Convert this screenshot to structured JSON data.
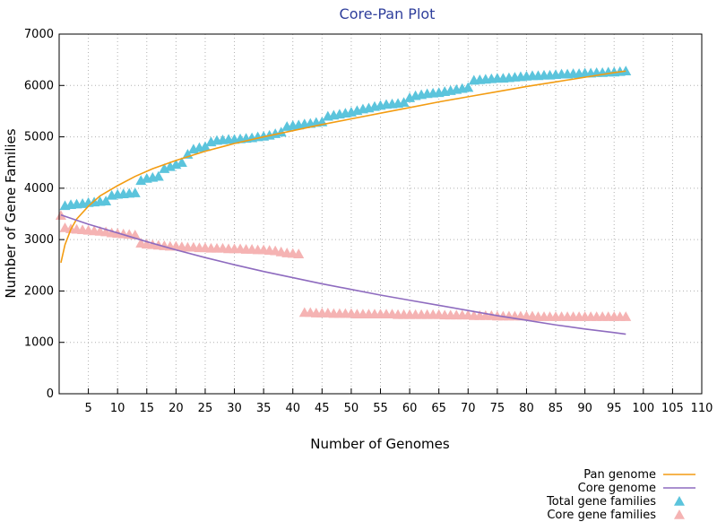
{
  "chart_data": {
    "type": "line",
    "title": "Core-Pan Plot",
    "xlabel": "Number of Genomes",
    "ylabel": "Number of Gene Families",
    "xlim": [
      0,
      110
    ],
    "ylim": [
      0,
      7000
    ],
    "xticks": [
      5,
      10,
      15,
      20,
      25,
      30,
      35,
      40,
      45,
      50,
      55,
      60,
      65,
      70,
      75,
      80,
      85,
      90,
      95,
      100,
      105,
      110
    ],
    "yticks": [
      0,
      1000,
      2000,
      3000,
      4000,
      5000,
      6000,
      7000
    ],
    "legend_position": "bottom-right",
    "series": [
      {
        "name": "Pan genome",
        "kind": "fit-line",
        "color": "#f39c12",
        "x": [
          0.3,
          1,
          2,
          3,
          5,
          7,
          10,
          13,
          16,
          20,
          25,
          30,
          35,
          40,
          45,
          50,
          55,
          60,
          65,
          70,
          75,
          80,
          85,
          90,
          95,
          97
        ],
        "values": [
          2550,
          2900,
          3200,
          3400,
          3650,
          3850,
          4050,
          4230,
          4380,
          4540,
          4720,
          4870,
          5000,
          5120,
          5240,
          5350,
          5460,
          5570,
          5680,
          5780,
          5880,
          5980,
          6070,
          6160,
          6250,
          6280
        ]
      },
      {
        "name": "Core genome",
        "kind": "fit-line",
        "color": "#8e6bbf",
        "x": [
          0.3,
          5,
          10,
          15,
          20,
          25,
          30,
          35,
          40,
          45,
          50,
          55,
          60,
          65,
          70,
          75,
          80,
          85,
          90,
          95,
          97
        ],
        "values": [
          3480,
          3300,
          3130,
          2960,
          2800,
          2650,
          2510,
          2380,
          2260,
          2140,
          2030,
          1920,
          1820,
          1720,
          1620,
          1520,
          1430,
          1340,
          1260,
          1190,
          1160
        ]
      },
      {
        "name": "Total gene families",
        "kind": "markers",
        "color": "#5bc4dc",
        "x": [
          1,
          2,
          3,
          4,
          5,
          6,
          7,
          8,
          9,
          10,
          11,
          12,
          13,
          14,
          15,
          16,
          17,
          18,
          19,
          20,
          21,
          22,
          23,
          24,
          25,
          26,
          27,
          28,
          29,
          30,
          31,
          32,
          33,
          34,
          35,
          36,
          37,
          38,
          39,
          40,
          41,
          42,
          43,
          44,
          45,
          46,
          47,
          48,
          49,
          50,
          51,
          52,
          53,
          54,
          55,
          56,
          57,
          58,
          59,
          60,
          61,
          62,
          63,
          64,
          65,
          66,
          67,
          68,
          69,
          70,
          71,
          72,
          73,
          74,
          75,
          76,
          77,
          78,
          79,
          80,
          81,
          82,
          83,
          84,
          85,
          86,
          87,
          88,
          89,
          90,
          91,
          92,
          93,
          94,
          95,
          96,
          97
        ],
        "values": [
          3660,
          3680,
          3690,
          3700,
          3720,
          3730,
          3740,
          3750,
          3860,
          3880,
          3890,
          3900,
          3910,
          4150,
          4190,
          4210,
          4230,
          4380,
          4420,
          4460,
          4500,
          4660,
          4760,
          4790,
          4810,
          4900,
          4930,
          4940,
          4950,
          4950,
          4960,
          4970,
          4980,
          5000,
          5010,
          5030,
          5060,
          5090,
          5200,
          5220,
          5230,
          5250,
          5260,
          5280,
          5290,
          5400,
          5420,
          5440,
          5460,
          5480,
          5510,
          5540,
          5560,
          5590,
          5610,
          5630,
          5640,
          5650,
          5670,
          5760,
          5800,
          5820,
          5840,
          5850,
          5860,
          5880,
          5900,
          5920,
          5940,
          5960,
          6100,
          6110,
          6120,
          6130,
          6140,
          6140,
          6150,
          6160,
          6170,
          6180,
          6190,
          6190,
          6200,
          6200,
          6210,
          6220,
          6220,
          6230,
          6230,
          6240,
          6240,
          6250,
          6250,
          6260,
          6260,
          6270,
          6280
        ]
      },
      {
        "name": "Core gene families",
        "kind": "markers",
        "color": "#f5b3b3",
        "x": [
          0.3,
          1,
          2,
          3,
          4,
          5,
          6,
          7,
          8,
          9,
          10,
          11,
          12,
          13,
          14,
          15,
          16,
          17,
          18,
          19,
          20,
          21,
          22,
          23,
          24,
          25,
          26,
          27,
          28,
          29,
          30,
          31,
          32,
          33,
          34,
          35,
          36,
          37,
          38,
          39,
          40,
          41,
          42,
          43,
          44,
          45,
          46,
          47,
          48,
          49,
          50,
          51,
          52,
          53,
          54,
          55,
          56,
          57,
          58,
          59,
          60,
          61,
          62,
          63,
          64,
          65,
          66,
          67,
          68,
          69,
          70,
          71,
          72,
          73,
          74,
          75,
          76,
          77,
          78,
          79,
          80,
          81,
          82,
          83,
          84,
          85,
          86,
          87,
          88,
          89,
          90,
          91,
          92,
          93,
          94,
          95,
          96,
          97
        ],
        "values": [
          3470,
          3230,
          3210,
          3200,
          3190,
          3180,
          3170,
          3160,
          3150,
          3130,
          3120,
          3110,
          3100,
          3090,
          2930,
          2910,
          2900,
          2890,
          2880,
          2870,
          2870,
          2860,
          2850,
          2850,
          2840,
          2840,
          2830,
          2830,
          2830,
          2820,
          2820,
          2820,
          2810,
          2810,
          2800,
          2800,
          2790,
          2780,
          2760,
          2740,
          2730,
          2720,
          1580,
          1580,
          1570,
          1570,
          1570,
          1560,
          1560,
          1560,
          1560,
          1550,
          1550,
          1550,
          1550,
          1550,
          1550,
          1550,
          1540,
          1540,
          1540,
          1540,
          1540,
          1540,
          1540,
          1540,
          1530,
          1530,
          1530,
          1530,
          1530,
          1520,
          1520,
          1520,
          1520,
          1510,
          1510,
          1510,
          1510,
          1510,
          1510,
          1510,
          1500,
          1500,
          1500,
          1500,
          1500,
          1500,
          1500,
          1500,
          1500,
          1500,
          1500,
          1500,
          1500,
          1500,
          1500,
          1500
        ]
      }
    ]
  }
}
